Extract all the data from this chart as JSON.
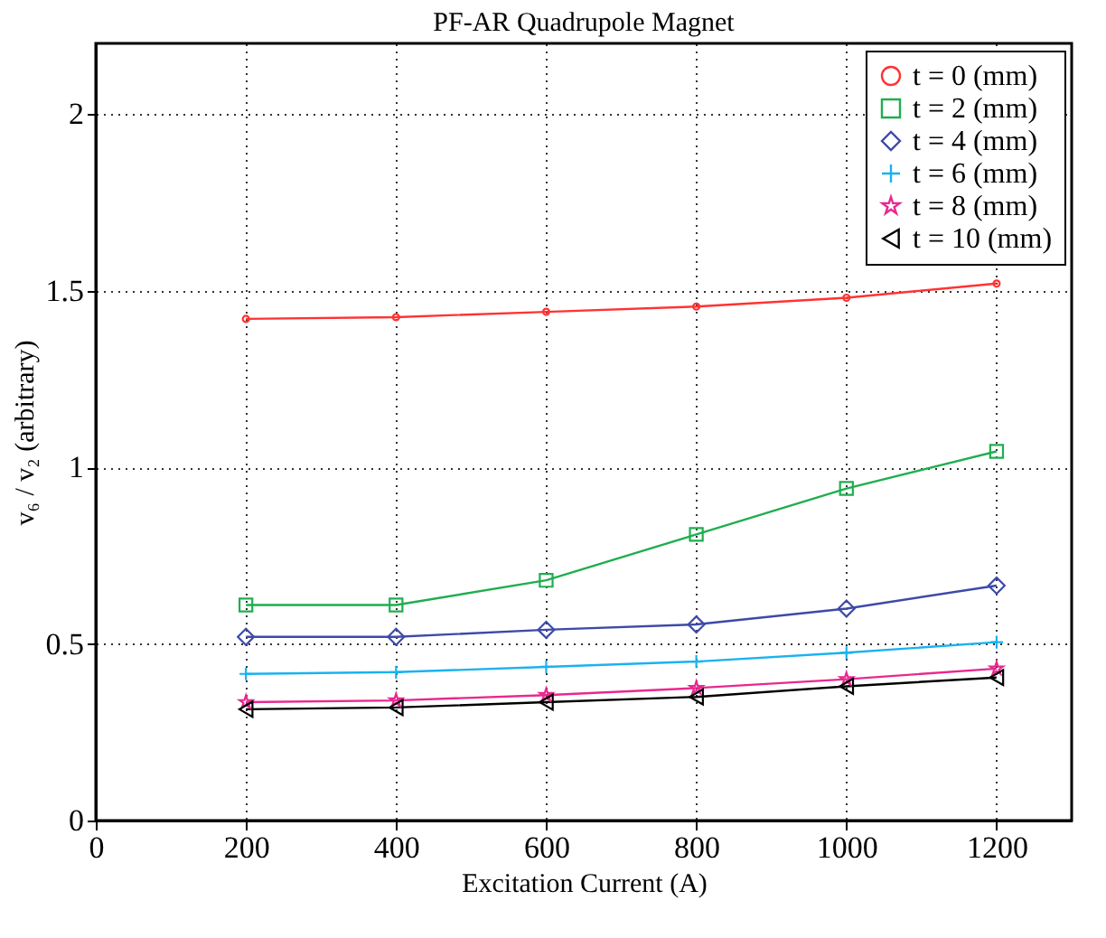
{
  "chart_data": {
    "type": "line",
    "title": "PF-AR Quadrupole Magnet",
    "xlabel": "Excitation Current (A)",
    "ylabel": "v₆ / v₂  (arbitrary)",
    "x": [
      200,
      400,
      600,
      800,
      1000,
      1200
    ],
    "series": [
      {
        "name": "t =  0 (mm)",
        "color": "#ff3333",
        "marker": "circle",
        "values": [
          1.42,
          1.425,
          1.44,
          1.455,
          1.48,
          1.52
        ]
      },
      {
        "name": "t =  2 (mm)",
        "color": "#1fae4f",
        "marker": "square",
        "values": [
          0.61,
          0.61,
          0.68,
          0.81,
          0.94,
          1.045
        ]
      },
      {
        "name": "t =  4 (mm)",
        "color": "#3d4aa8",
        "marker": "diamond",
        "values": [
          0.52,
          0.52,
          0.54,
          0.555,
          0.6,
          0.665
        ]
      },
      {
        "name": "t =  6 (mm)",
        "color": "#1ab2ef",
        "marker": "cross",
        "values": [
          0.415,
          0.42,
          0.435,
          0.45,
          0.475,
          0.505
        ]
      },
      {
        "name": "t =  8 (mm)",
        "color": "#e8288f",
        "marker": "star",
        "values": [
          0.335,
          0.34,
          0.355,
          0.375,
          0.4,
          0.43
        ]
      },
      {
        "name": "t = 10 (mm)",
        "color": "#000000",
        "marker": "triangle",
        "values": [
          0.315,
          0.32,
          0.335,
          0.35,
          0.38,
          0.405
        ]
      }
    ],
    "xlim": [
      0,
      1300
    ],
    "xticks": [
      0,
      200,
      400,
      600,
      800,
      1000,
      1200
    ],
    "ylim": [
      0,
      2.2
    ],
    "yticks": [
      0,
      0.5,
      1,
      1.5,
      2
    ],
    "grid": true,
    "legend": "top right",
    "line_style": "solid"
  }
}
